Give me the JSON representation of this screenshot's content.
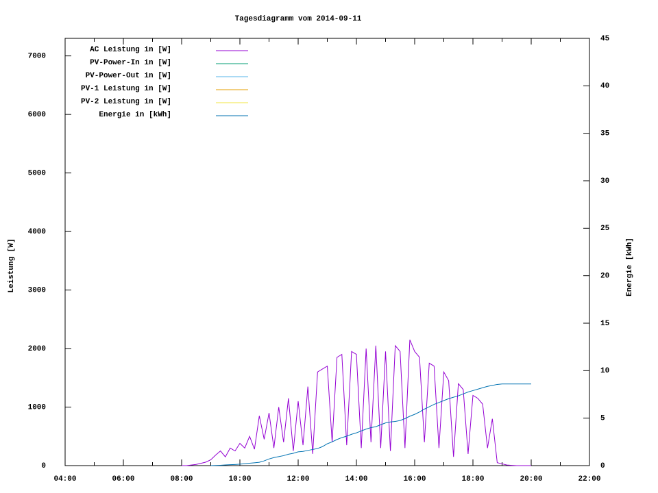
{
  "chart_data": {
    "type": "line",
    "title": "Tagesdiagramm vom 2014-09-11",
    "ylabel": "Leistung [W]",
    "y2label": "Energie [kWh]",
    "x": [
      480,
      490,
      500,
      510,
      520,
      530,
      540,
      550,
      560,
      570,
      580,
      590,
      600,
      610,
      620,
      630,
      640,
      650,
      660,
      670,
      680,
      690,
      700,
      710,
      720,
      730,
      740,
      750,
      760,
      770,
      780,
      790,
      800,
      810,
      820,
      830,
      840,
      850,
      860,
      870,
      880,
      890,
      900,
      910,
      920,
      930,
      940,
      950,
      960,
      970,
      980,
      990,
      1000,
      1010,
      1020,
      1030,
      1040,
      1050,
      1060,
      1070,
      1080,
      1090,
      1100,
      1110,
      1120,
      1130,
      1140,
      1150,
      1160,
      1170,
      1180,
      1190,
      1200
    ],
    "xlim": [
      240,
      1320
    ],
    "xticks": [
      {
        "value": 240,
        "label": "04:00"
      },
      {
        "value": 360,
        "label": "06:00"
      },
      {
        "value": 480,
        "label": "08:00"
      },
      {
        "value": 600,
        "label": "10:00"
      },
      {
        "value": 720,
        "label": "12:00"
      },
      {
        "value": 840,
        "label": "14:00"
      },
      {
        "value": 960,
        "label": "16:00"
      },
      {
        "value": 1080,
        "label": "18:00"
      },
      {
        "value": 1200,
        "label": "20:00"
      },
      {
        "value": 1320,
        "label": "22:00"
      }
    ],
    "ylim": [
      0,
      7300
    ],
    "yticks": [
      0,
      1000,
      2000,
      3000,
      4000,
      5000,
      6000,
      7000
    ],
    "y2lim": [
      0,
      45
    ],
    "y2ticks": [
      0,
      5,
      10,
      15,
      20,
      25,
      30,
      35,
      40,
      45
    ],
    "legend": "top-left",
    "series": [
      {
        "name": "AC Leistung in [W]",
        "color": "#9400d3",
        "values": [
          0,
          0,
          10,
          20,
          40,
          60,
          100,
          180,
          250,
          150,
          300,
          250,
          380,
          300,
          500,
          280,
          850,
          450,
          900,
          300,
          1000,
          400,
          1150,
          250,
          1100,
          350,
          1350,
          200,
          1600,
          1650,
          1700,
          400,
          1850,
          1900,
          350,
          1950,
          1900,
          300,
          2000,
          400,
          2050,
          300,
          1950,
          250,
          2050,
          1950,
          300,
          2150,
          1950,
          1850,
          400,
          1750,
          1700,
          300,
          1600,
          1450,
          150,
          1400,
          1300,
          200,
          1200,
          1150,
          1050,
          300,
          800,
          50,
          30,
          10,
          5,
          0,
          0,
          0,
          0
        ]
      },
      {
        "name": "PV-Power-In in [W]",
        "color": "#009e73",
        "values": [
          null,
          null,
          null,
          null,
          null,
          null,
          null,
          null,
          null,
          null,
          null,
          null,
          null,
          null,
          null,
          null,
          null,
          null,
          null,
          null,
          null,
          null,
          null,
          null,
          null,
          null,
          null,
          null,
          null,
          null,
          null,
          null,
          null,
          null,
          null,
          null,
          null,
          null,
          null,
          null,
          null,
          null,
          null,
          null,
          null,
          null,
          null,
          null,
          null,
          null,
          null,
          null,
          null,
          null,
          null,
          null,
          null,
          null,
          null,
          null,
          null,
          null,
          null,
          null,
          null,
          null,
          null,
          null,
          null,
          null,
          null,
          null,
          null
        ]
      },
      {
        "name": "PV-Power-Out in [W]",
        "color": "#56b4e9",
        "values": [
          null,
          null,
          null,
          null,
          null,
          null,
          null,
          null,
          null,
          null,
          null,
          null,
          null,
          null,
          null,
          null,
          null,
          null,
          null,
          null,
          null,
          null,
          null,
          null,
          null,
          null,
          null,
          null,
          null,
          null,
          null,
          null,
          null,
          null,
          null,
          null,
          null,
          null,
          null,
          null,
          null,
          null,
          null,
          null,
          null,
          null,
          null,
          null,
          null,
          null,
          null,
          null,
          null,
          null,
          null,
          null,
          null,
          null,
          null,
          null,
          null,
          null,
          null,
          null,
          null,
          null,
          null,
          null,
          null,
          null,
          null,
          null,
          null
        ]
      },
      {
        "name": "PV-1 Leistung in [W]",
        "color": "#e69f00",
        "values": [
          null,
          null,
          null,
          null,
          null,
          null,
          null,
          null,
          null,
          null,
          null,
          null,
          null,
          null,
          null,
          null,
          null,
          null,
          null,
          null,
          null,
          null,
          null,
          null,
          null,
          null,
          null,
          null,
          null,
          null,
          null,
          null,
          null,
          null,
          null,
          null,
          null,
          null,
          null,
          null,
          null,
          null,
          null,
          null,
          null,
          null,
          null,
          null,
          null,
          null,
          null,
          null,
          null,
          null,
          null,
          null,
          null,
          null,
          null,
          null,
          null,
          null,
          null,
          null,
          null,
          null,
          null,
          null,
          null,
          null,
          null,
          null,
          null
        ]
      },
      {
        "name": "PV-2 Leistung in [W]",
        "color": "#f0e442",
        "values": [
          null,
          null,
          null,
          null,
          null,
          null,
          null,
          null,
          null,
          null,
          null,
          null,
          null,
          null,
          null,
          null,
          null,
          null,
          null,
          null,
          null,
          null,
          null,
          null,
          null,
          null,
          null,
          null,
          null,
          null,
          null,
          null,
          null,
          null,
          null,
          null,
          null,
          null,
          null,
          null,
          null,
          null,
          null,
          null,
          null,
          null,
          null,
          null,
          null,
          null,
          null,
          null,
          null,
          null,
          null,
          null,
          null,
          null,
          null,
          null,
          null,
          null,
          null,
          null,
          null,
          null,
          null,
          null,
          null,
          null,
          null,
          null,
          null
        ]
      },
      {
        "name": "Energie in [kWh]",
        "color": "#0072b2",
        "axis": "y2",
        "values": [
          null,
          null,
          null,
          null,
          null,
          null,
          0,
          0.02,
          0.04,
          0.07,
          0.1,
          0.12,
          0.15,
          0.2,
          0.25,
          0.3,
          0.35,
          0.5,
          0.7,
          0.85,
          0.95,
          1.05,
          1.2,
          1.3,
          1.45,
          1.5,
          1.6,
          1.7,
          1.8,
          2.0,
          2.3,
          2.5,
          2.75,
          2.95,
          3.1,
          3.3,
          3.45,
          3.65,
          3.85,
          4.0,
          4.1,
          4.3,
          4.5,
          4.6,
          4.65,
          4.75,
          4.95,
          5.2,
          5.4,
          5.65,
          5.95,
          6.2,
          6.45,
          6.65,
          6.85,
          7.05,
          7.2,
          7.35,
          7.55,
          7.75,
          7.9,
          8.05,
          8.2,
          8.35,
          8.45,
          8.55,
          8.6,
          8.6,
          8.6,
          8.6,
          8.6,
          8.6,
          8.6
        ]
      }
    ]
  }
}
